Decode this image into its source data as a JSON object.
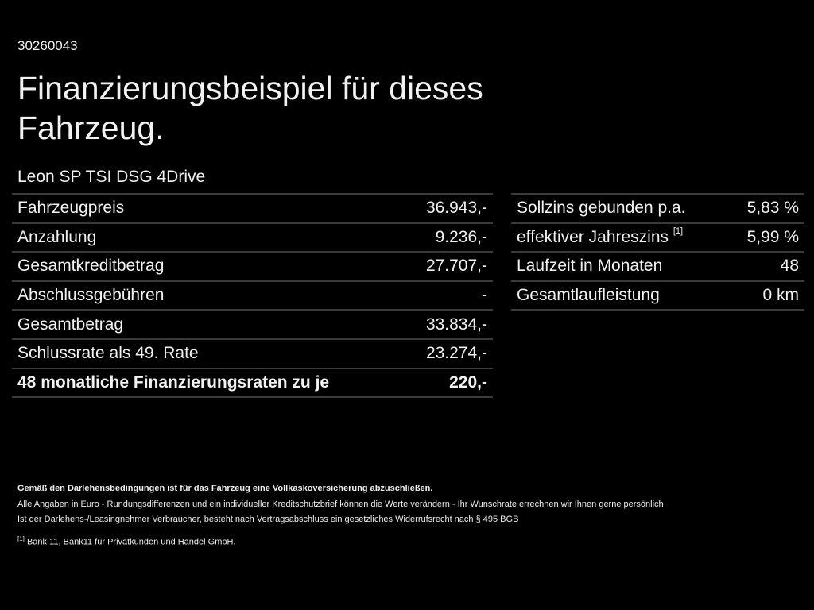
{
  "vehicle_id": "30260043",
  "title": "Finanzierungsbeispiel für dieses Fahrzeug.",
  "model": "Leon SP TSI DSG 4Drive",
  "left_table": [
    {
      "label": "Fahrzeugpreis",
      "value": "36.943,-"
    },
    {
      "label": "Anzahlung",
      "value": "9.236,-"
    },
    {
      "label": "Gesamtkreditbetrag",
      "value": "27.707,-"
    },
    {
      "label": "Abschlussgebühren",
      "value": "-"
    },
    {
      "label": "Gesamtbetrag",
      "value": "33.834,-"
    },
    {
      "label": "Schlussrate als 49. Rate",
      "value": "23.274,-"
    },
    {
      "label": "48 monatliche Finanzierungsraten zu je",
      "value": "220,-"
    }
  ],
  "right_table": [
    {
      "label": "Sollzins gebunden p.a.",
      "value": "5,83 %"
    },
    {
      "label": "effektiver Jahreszins",
      "footnote": "[1]",
      "value": "5,99 %"
    },
    {
      "label": "Laufzeit in Monaten",
      "value": "48"
    },
    {
      "label": "Gesamtlaufleistung",
      "value": "0 km"
    }
  ],
  "notes": {
    "insurance": "Gemäß den Darlehensbedingungen ist für das Fahrzeug eine Vollkaskoversicherung abzuschließen.",
    "euro": "Alle Angaben in Euro - Rundungsdifferenzen und ein individueller Kreditschutzbrief können die Werte verändern - Ihr Wunschrate errechnen wir Ihnen gerne persönlich",
    "withdrawal": "Ist der Darlehens-/Leasingnehmer Verbraucher, besteht nach Vertragsabschluss ein gesetzliches Widerrufsrecht nach § 495 BGB",
    "footnote_marker": "[1]",
    "footnote_text": "Bank 11, Bank11 für Privatkunden und Handel GmbH."
  }
}
